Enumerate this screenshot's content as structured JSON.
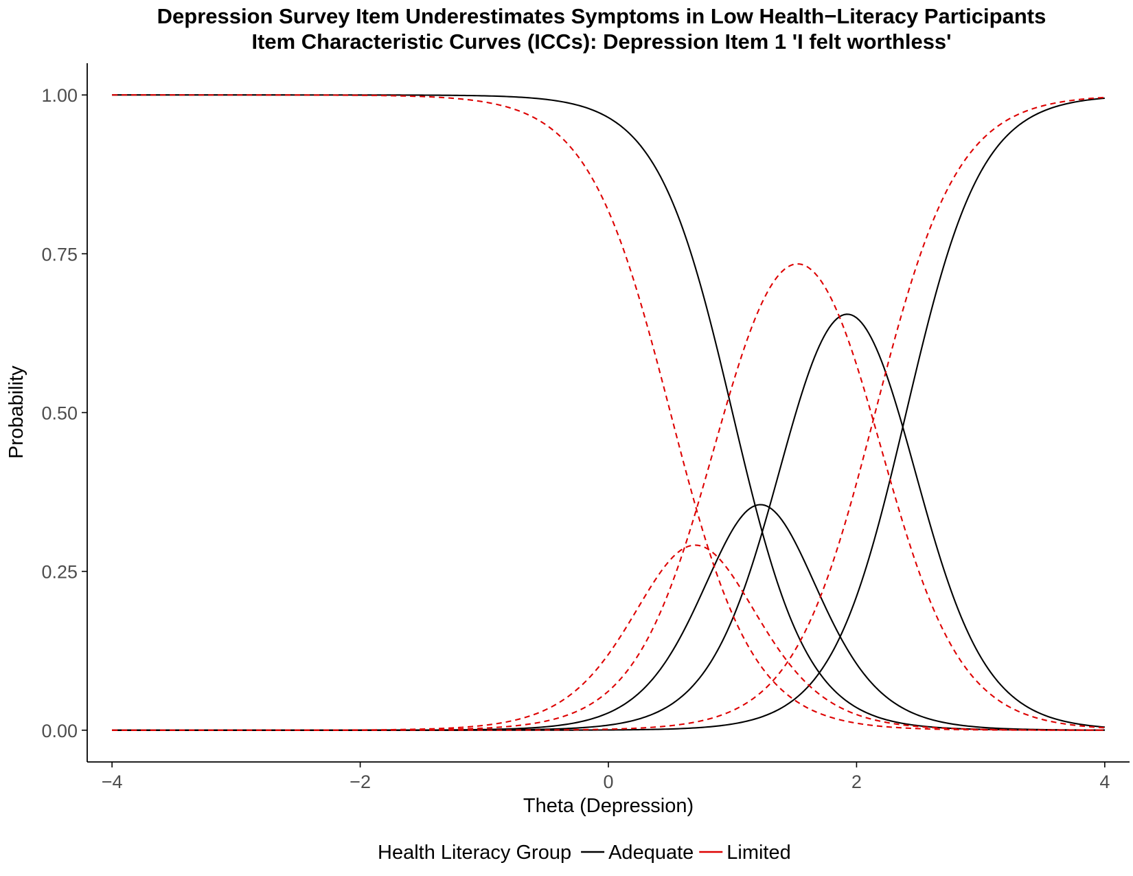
{
  "chart_data": {
    "type": "line",
    "title": "Depression Survey Item Underestimates Symptoms in Low Health−Literacy Participants",
    "subtitle": "Item Characteristic Curves (ICCs): Depression Item 1 'I felt worthless'",
    "xlabel": "Theta (Depression)",
    "ylabel": "Probability",
    "xlim": [
      -4.2,
      4.2
    ],
    "ylim": [
      -0.05,
      1.05
    ],
    "x_ticks": [
      -4,
      -2,
      0,
      2,
      4
    ],
    "x_tick_labels": [
      "−4",
      "−2",
      "0",
      "2",
      "4"
    ],
    "y_ticks": [
      0,
      0.25,
      0.5,
      0.75,
      1
    ],
    "y_tick_labels": [
      "0.00",
      "0.25",
      "0.50",
      "0.75",
      "1.00"
    ],
    "grid": false,
    "legend": {
      "title": "Health Literacy Group",
      "position": "bottom",
      "entries": [
        "Adequate",
        "Limited"
      ]
    },
    "model": {
      "groups": [
        {
          "name": "Adequate",
          "color": "#000000",
          "linetype": "solid",
          "discrimination": 3.3,
          "thresholds": [
            1.0,
            1.45,
            2.4
          ]
        },
        {
          "name": "Limited",
          "color": "#dd0000",
          "linetype": "dashed",
          "discrimination": 3.0,
          "thresholds": [
            0.5,
            0.9,
            2.15
          ]
        }
      ],
      "x_range": [
        -4,
        4
      ]
    },
    "series": [
      {
        "group": "Adequate",
        "category": 0,
        "points": [
          [
            -4,
            1.0
          ],
          [
            -1,
            0.9986
          ],
          [
            0,
            0.9643
          ],
          [
            0.5,
            0.8389
          ],
          [
            1.0,
            0.5
          ],
          [
            1.5,
            0.1611
          ],
          [
            2.0,
            0.0357
          ],
          [
            3.0,
            0.0014
          ],
          [
            4.0,
            0.0
          ]
        ]
      },
      {
        "group": "Adequate",
        "category": 1,
        "points": [
          [
            -4,
            0.0
          ],
          [
            -1,
            0.0013
          ],
          [
            0,
            0.0274
          ],
          [
            0.5,
            0.1214
          ],
          [
            1.0,
            0.3128
          ],
          [
            1.25,
            0.4651
          ],
          [
            1.5,
            0.3917
          ],
          [
            2.0,
            0.1266
          ],
          [
            2.5,
            0.0268
          ],
          [
            3.0,
            0.0052
          ],
          [
            4.0,
            0.0002
          ]
        ]
      },
      {
        "group": "Adequate",
        "category": 2,
        "points": [
          [
            -4,
            0.0
          ],
          [
            -1,
            0.0001
          ],
          [
            0,
            0.0075
          ],
          [
            0.5,
            0.0379
          ],
          [
            1.0,
            0.1695
          ],
          [
            1.5,
            0.3799
          ],
          [
            1.95,
            0.632
          ],
          [
            2.5,
            0.5541
          ],
          [
            3.0,
            0.1158
          ],
          [
            3.5,
            0.0257
          ],
          [
            4.0,
            0.005
          ]
        ]
      },
      {
        "group": "Adequate",
        "category": 3,
        "points": [
          [
            -4,
            0.0
          ],
          [
            0,
            0.0004
          ],
          [
            1.0,
            0.0097
          ],
          [
            1.5,
            0.0474
          ],
          [
            2.0,
            0.2108
          ],
          [
            2.4,
            0.5
          ],
          [
            3.0,
            0.879
          ],
          [
            3.5,
            0.9741
          ],
          [
            4.0,
            0.9949
          ]
        ]
      },
      {
        "group": "Limited",
        "category": 0,
        "points": [
          [
            -4,
            1.0
          ],
          [
            -1,
            0.9889
          ],
          [
            0,
            0.8176
          ],
          [
            0.5,
            0.5
          ],
          [
            1.0,
            0.1824
          ],
          [
            1.5,
            0.0474
          ],
          [
            2.0,
            0.011
          ],
          [
            3.0,
            0.0006
          ],
          [
            4.0,
            0.0
          ]
        ]
      },
      {
        "group": "Limited",
        "category": 1,
        "points": [
          [
            -4,
            0.0
          ],
          [
            -1,
            0.0078
          ],
          [
            0,
            0.1151
          ],
          [
            0.5,
            0.2311
          ],
          [
            0.9,
            0.2477
          ],
          [
            1.5,
            0.1124
          ],
          [
            2.0,
            0.0253
          ],
          [
            3.0,
            0.0013
          ],
          [
            4.0,
            0.0
          ]
        ]
      },
      {
        "group": "Limited",
        "category": 2,
        "points": [
          [
            -4,
            0.0
          ],
          [
            -1,
            0.0033
          ],
          [
            0,
            0.0657
          ],
          [
            0.5,
            0.2412
          ],
          [
            1.0,
            0.5097
          ],
          [
            1.6,
            0.6489
          ],
          [
            2.15,
            0.5
          ],
          [
            2.5,
            0.2506
          ],
          [
            3.0,
            0.0722
          ],
          [
            4.0,
            0.0039
          ]
        ]
      },
      {
        "group": "Limited",
        "category": 3,
        "points": [
          [
            -4,
            0.0
          ],
          [
            0,
            0.0016
          ],
          [
            1.0,
            0.0308
          ],
          [
            1.5,
            0.1246
          ],
          [
            2.15,
            0.5
          ],
          [
            2.5,
            0.7408
          ],
          [
            3.0,
            0.9276
          ],
          [
            4.0,
            0.9961
          ]
        ]
      }
    ]
  }
}
